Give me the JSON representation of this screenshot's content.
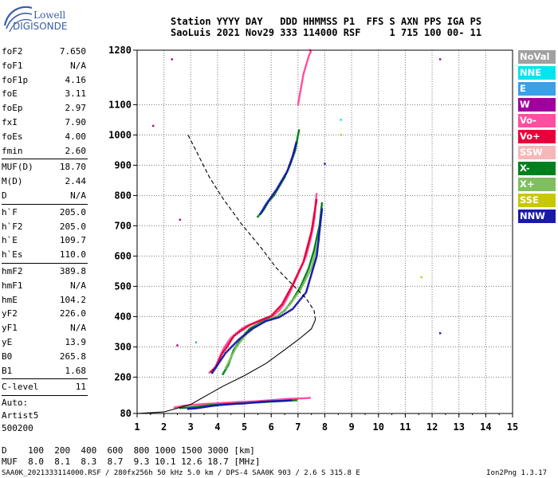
{
  "logo": {
    "line1": "Lowell",
    "line2": "DIGISONDE"
  },
  "header": {
    "line1": "Station YYYY DAY   DDD HHMMSS P1  FFS S AXN PPS IGA PS",
    "line2": "SaoLuis 2021 Nov29 333 114000 RSF     1 715 100 00- 11"
  },
  "params": [
    {
      "label": "foF2",
      "value": "7.650"
    },
    {
      "label": "foF1",
      "value": "N/A"
    },
    {
      "label": "foF1p",
      "value": "4.16"
    },
    {
      "label": "foE",
      "value": "3.11"
    },
    {
      "label": "foEp",
      "value": "2.97"
    },
    {
      "label": "fxI",
      "value": "7.90"
    },
    {
      "label": "foEs",
      "value": "4.00"
    },
    {
      "label": "fmin",
      "value": "2.60"
    },
    {
      "sep": true
    },
    {
      "label": "MUF(D)",
      "value": "18.70"
    },
    {
      "label": "M(D)",
      "value": "2.44"
    },
    {
      "label": "D",
      "value": "N/A"
    },
    {
      "sep": true
    },
    {
      "label": "h`F",
      "value": "205.0"
    },
    {
      "label": "h`F2",
      "value": "205.0"
    },
    {
      "label": "h`E",
      "value": "109.7"
    },
    {
      "label": "h`Es",
      "value": "110.0"
    },
    {
      "sep": true
    },
    {
      "label": "hmF2",
      "value": "389.8"
    },
    {
      "label": "hmF1",
      "value": "N/A"
    },
    {
      "label": "hmE",
      "value": "104.2"
    },
    {
      "label": "yF2",
      "value": "226.0"
    },
    {
      "label": "yF1",
      "value": "N/A"
    },
    {
      "label": "yE",
      "value": "13.9"
    },
    {
      "label": "B0",
      "value": "265.8"
    },
    {
      "label": "B1",
      "value": "1.68"
    },
    {
      "sep": true
    },
    {
      "label": "C-level",
      "value": "11"
    },
    {
      "sep": true
    }
  ],
  "autoscaling": {
    "line1": "Auto:",
    "line2": "Artist5",
    "line3": "500200"
  },
  "legend": [
    {
      "label": "NoVal",
      "color": "#a0a0a0"
    },
    {
      "label": "NNE",
      "color": "#00e5ee"
    },
    {
      "label": "E",
      "color": "#3aa0e8"
    },
    {
      "label": "W",
      "color": "#a0009f"
    },
    {
      "label": "Vo-",
      "color": "#ff4fa0"
    },
    {
      "label": "Vo+",
      "color": "#e8003a"
    },
    {
      "label": "SSW",
      "color": "#f5b7b7"
    },
    {
      "label": "X-",
      "color": "#00801d"
    },
    {
      "label": "X+",
      "color": "#7fbf5f"
    },
    {
      "label": "SSE",
      "color": "#c8c800"
    },
    {
      "label": "NNW",
      "color": "#1a1aa8"
    }
  ],
  "muf_table": {
    "line1": "D    100  200  400  600  800 1000 1500 3000 [km]",
    "line2": "MUF  8.0  8.1  8.3  8.7  9.3 10.1 12.6 18.7 [MHz]"
  },
  "footer": {
    "left": "SAA0K_2021333114000.RSF / 280fx256h 50 kHz 5.0 km / DPS-4 SAA0K 903 / 2.6 S 315.8 E",
    "right": "Ion2Png 1.3.17"
  },
  "chart_data": {
    "type": "scatter",
    "xlim": [
      1,
      15
    ],
    "ylim": [
      80,
      1280
    ],
    "xticks": [
      1,
      2,
      3,
      4,
      5,
      6,
      7,
      8,
      9,
      10,
      11,
      12,
      13,
      14,
      15
    ],
    "yticks": [
      80,
      200,
      300,
      400,
      500,
      600,
      700,
      800,
      900,
      1000,
      1100,
      1280
    ],
    "grid": true,
    "profile_curve": {
      "freq": [
        1.0,
        2.0,
        3.0,
        3.6,
        4.2,
        5.0,
        5.8,
        6.5,
        7.1,
        7.5,
        7.65
      ],
      "height": [
        80,
        85,
        110,
        140,
        170,
        205,
        245,
        290,
        330,
        360,
        389.8
      ]
    },
    "dashed_curve": {
      "freq": [
        2.9,
        3.3,
        3.7,
        4.2,
        4.9,
        5.6,
        6.2,
        6.8,
        7.3,
        7.6,
        7.65
      ],
      "height": [
        1000,
        930,
        860,
        790,
        705,
        630,
        560,
        505,
        460,
        420,
        389.8
      ]
    },
    "traces": [
      {
        "mode": "Vo-",
        "freq": [
          3.7,
          3.8,
          3.9,
          4.0,
          4.1,
          4.2,
          4.3,
          4.5,
          4.7,
          4.9,
          5.1,
          5.4,
          5.7,
          5.9,
          6.1,
          6.3,
          6.5,
          6.7,
          6.9,
          7.1,
          7.3,
          7.45,
          7.55,
          7.62,
          7.66,
          7.7
        ],
        "height": [
          215,
          220,
          230,
          250,
          270,
          290,
          305,
          330,
          345,
          360,
          370,
          380,
          390,
          398,
          405,
          420,
          445,
          480,
          520,
          560,
          600,
          650,
          690,
          730,
          780,
          810
        ]
      },
      {
        "mode": "Vo+",
        "freq": [
          3.75,
          3.95,
          4.15,
          4.35,
          4.6,
          4.85,
          5.2,
          5.6,
          6.0,
          6.4,
          6.8,
          7.2,
          7.5,
          7.7
        ],
        "height": [
          218,
          235,
          275,
          300,
          335,
          352,
          372,
          388,
          402,
          440,
          505,
          580,
          680,
          790
        ]
      },
      {
        "mode": "X-",
        "freq": [
          4.2,
          4.4,
          4.6,
          4.9,
          5.2,
          5.6,
          5.9,
          6.2,
          6.5,
          6.8,
          7.1,
          7.4,
          7.6,
          7.8,
          7.9
        ],
        "height": [
          210,
          240,
          290,
          330,
          360,
          380,
          392,
          400,
          420,
          455,
          500,
          560,
          620,
          700,
          780
        ]
      },
      {
        "mode": "X+",
        "freq": [
          4.3,
          4.7,
          5.1,
          5.5,
          5.9,
          6.3,
          6.7,
          7.1,
          7.5,
          7.8
        ],
        "height": [
          230,
          300,
          345,
          372,
          390,
          405,
          440,
          490,
          560,
          660
        ]
      },
      {
        "mode": "NNW",
        "freq": [
          3.8,
          4.3,
          4.8,
          5.3,
          5.8,
          6.3,
          6.8,
          7.3,
          7.7,
          7.9
        ],
        "height": [
          214,
          280,
          325,
          360,
          385,
          398,
          425,
          480,
          600,
          760
        ]
      },
      {
        "mode": "X-",
        "freq": [
          5.5,
          5.7,
          5.9,
          6.1,
          6.3,
          6.5,
          6.7,
          6.9,
          7.0,
          7.05
        ],
        "height": [
          730,
          750,
          780,
          800,
          830,
          860,
          900,
          950,
          1000,
          1020
        ]
      },
      {
        "mode": "NNW",
        "freq": [
          5.6,
          5.8,
          6.0,
          6.2,
          6.4,
          6.6,
          6.8,
          6.95
        ],
        "height": [
          740,
          770,
          795,
          820,
          850,
          880,
          930,
          980
        ]
      },
      {
        "mode": "Vo-",
        "freq": [
          7.0,
          7.1,
          7.2,
          7.3,
          7.4,
          7.5
        ],
        "height": [
          1100,
          1150,
          1200,
          1230,
          1260,
          1280
        ]
      },
      {
        "mode": "Vo-",
        "freq": [
          2.4,
          2.7,
          3.0,
          3.3,
          3.6,
          3.9,
          4.2,
          4.5,
          4.8,
          5.1,
          5.4,
          5.7,
          6.0,
          6.3,
          6.6,
          6.9,
          7.2,
          7.5
        ],
        "height": [
          100,
          105,
          108,
          110,
          112,
          113,
          115,
          116,
          118,
          119,
          120,
          122,
          124,
          126,
          128,
          129,
          130,
          132
        ]
      },
      {
        "mode": "X-",
        "freq": [
          2.6,
          3.0,
          3.4,
          3.8,
          4.2,
          4.6,
          5.0,
          5.4,
          5.8,
          6.2,
          6.6,
          7.0
        ],
        "height": [
          98,
          100,
          104,
          108,
          110,
          112,
          114,
          116,
          118,
          120,
          122,
          124
        ]
      },
      {
        "mode": "NNW",
        "freq": [
          2.9,
          3.2,
          3.5,
          3.8,
          4.1,
          4.4,
          4.7,
          5.0,
          5.3,
          5.6,
          5.9,
          6.2,
          6.5,
          6.8
        ],
        "height": [
          95,
          97,
          101,
          105,
          108,
          110,
          112,
          113,
          116,
          118,
          120,
          121,
          122,
          124
        ]
      }
    ],
    "scatter_points": [
      {
        "mode": "W",
        "freq": 1.6,
        "height": 1030
      },
      {
        "mode": "W",
        "freq": 2.3,
        "height": 1250
      },
      {
        "mode": "W",
        "freq": 2.6,
        "height": 720
      },
      {
        "mode": "W",
        "freq": 2.5,
        "height": 305
      },
      {
        "mode": "E",
        "freq": 3.2,
        "height": 315
      },
      {
        "mode": "NNE",
        "freq": 8.6,
        "height": 1050
      },
      {
        "mode": "SSE",
        "freq": 8.6,
        "height": 1000
      },
      {
        "mode": "SSE",
        "freq": 11.6,
        "height": 530
      },
      {
        "mode": "W",
        "freq": 12.3,
        "height": 1250
      },
      {
        "mode": "NNW",
        "freq": 12.3,
        "height": 345
      },
      {
        "mode": "NNW",
        "freq": 8.0,
        "height": 905
      },
      {
        "mode": "Vo+",
        "freq": 7.45,
        "height": 1280
      }
    ]
  }
}
